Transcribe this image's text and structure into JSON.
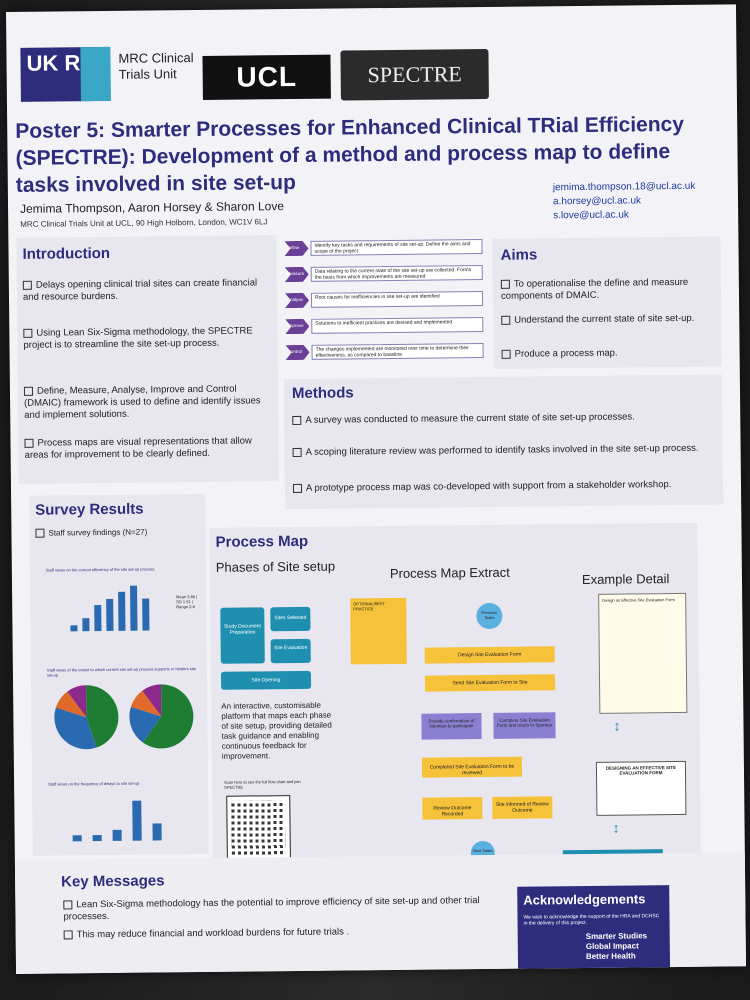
{
  "header": {
    "ukri": "UK RI",
    "mrc": "MRC Clinical Trials Unit",
    "ucl": "UCL",
    "spectre": "SPECTRE",
    "title": "Poster 5: Smarter Processes for Enhanced Clinical TRial Efficiency (SPECTRE): Development of a method and process map to define tasks involved in site set-up",
    "authors": "Jemima Thompson, Aaron Horsey & Sharon Love",
    "affiliation": "MRC Clinical Trials Unit at UCL, 90 High Holborn, London, WC1V 6LJ",
    "emails": [
      "jemima.thompson.18@ucl.ac.uk",
      "a.horsey@ucl.ac.uk",
      "s.love@ucl.ac.uk"
    ]
  },
  "intro": {
    "title": "Introduction",
    "items": [
      "Delays opening clinical trial sites can create financial and resource burdens.",
      "Using Lean Six-Sigma methodology, the SPECTRE project is to streamline the site set-up process.",
      "Define, Measure, Analyse, Improve and Control (DMAIC) framework is used to define and identify issues and implement solutions.",
      "Process maps are visual representations that allow areas for improvement to be clearly defined."
    ]
  },
  "dmaic": [
    {
      "label": "Define",
      "text": "Identify key tasks and requirements of site set-up. Define the aims and scope of the project"
    },
    {
      "label": "Measure",
      "text": "Data relating to the current state of the site set-up are collected. Forms the basis from which improvements are measured"
    },
    {
      "label": "Analyse",
      "text": "Root causes for inefficiencies in site set-up are identified"
    },
    {
      "label": "Improve",
      "text": "Solutions to inefficient practices are devised and implemented"
    },
    {
      "label": "Control",
      "text": "The changes implemented are monitored over time to determine their effectiveness, as compared to baseline"
    }
  ],
  "aims": {
    "title": "Aims",
    "items": [
      "To operationalise the define and measure components of DMAIC.",
      "Understand the current state of site set-up.",
      "Produce a process map."
    ]
  },
  "methods": {
    "title": "Methods",
    "items": [
      "A survey was conducted to measure the current state of site set-up processes.",
      "A scoping literature review was performed to identify tasks involved in the site set-up process.",
      "A prototype process map was co-developed with support from a stakeholder workshop."
    ]
  },
  "survey": {
    "title": "Survey Results",
    "subtitle": "Staff survey findings (N=27)",
    "chart1_title": "Staff views on the current efficiency of the site set-up process",
    "chart1_stats": "Mean 3.86 | SD 1.91 | Range 2-6",
    "chart2_title": "Staff views of the extent to which current site set-up process supports or hinders site set-up",
    "chart3_title": "Staff views on the frequency of delays to site set-up"
  },
  "chart_data": [
    {
      "type": "bar",
      "title": "Staff views on the current efficiency of the site set-up process",
      "values": [
        1,
        2,
        4,
        5,
        6,
        7,
        5
      ],
      "ylim": [
        0,
        8
      ]
    },
    {
      "type": "pie",
      "title": "Staff views of the extent to which current site set-up process supports or hinders site set-up",
      "values": [
        45,
        35,
        10,
        10
      ]
    },
    {
      "type": "pie",
      "values": [
        60,
        20,
        10,
        10
      ]
    },
    {
      "type": "bar",
      "title": "Staff views on the frequency of delays to site set-up",
      "values": [
        1,
        1,
        2,
        7,
        3
      ],
      "ylim": [
        0,
        8
      ]
    }
  ],
  "process": {
    "title": "Process Map",
    "phases_title": "Phases of Site setup",
    "extract_title": "Process Map Extract",
    "detail_title": "Example Detail",
    "phases": [
      "Study Document Preparation",
      "Sites Selected",
      "Site Evaluation",
      "Site Opening"
    ],
    "description": "An interactive, customisable platform that maps each phase of site setup, providing detailed task guidance and enabling continuous feedback for improvement.",
    "qr_caption": "Scan here to see the full flow chart and join SPECTRE",
    "map_nodes": [
      "OPTIONAL/BEST PRACTICE",
      "Previous Tasks",
      "Design Site Evaluation Form",
      "Send Site Evaluation Form to Site",
      "Provide confirmation of intention to participate",
      "Complete Site Evaluation Form and return to Sponsor",
      "Completed Site Evaluation Form to be reviewed",
      "Review Outcome Recorded",
      "Site informed of Review Outcome",
      "Next Tasks"
    ],
    "detail_card_title": "Design an Effective Site Evaluation Form",
    "detail_card2": "DESIGNING AN EFFECTIVE SITE EVALUATION FORM",
    "learn_more": "Learn more here"
  },
  "key": {
    "title": "Key Messages",
    "items": [
      "Lean Six-Sigma methodology has the potential to improve efficiency of site set-up and other trial processes.",
      "This may reduce financial and workload burdens for future trials ."
    ]
  },
  "ack": {
    "title": "Acknowledgements",
    "text": "We wish to acknowledge the support of the HRA and DCHSC in the delivery of this project.",
    "tagline": [
      "Smarter Studies",
      "Global Impact",
      "Better Health"
    ]
  }
}
